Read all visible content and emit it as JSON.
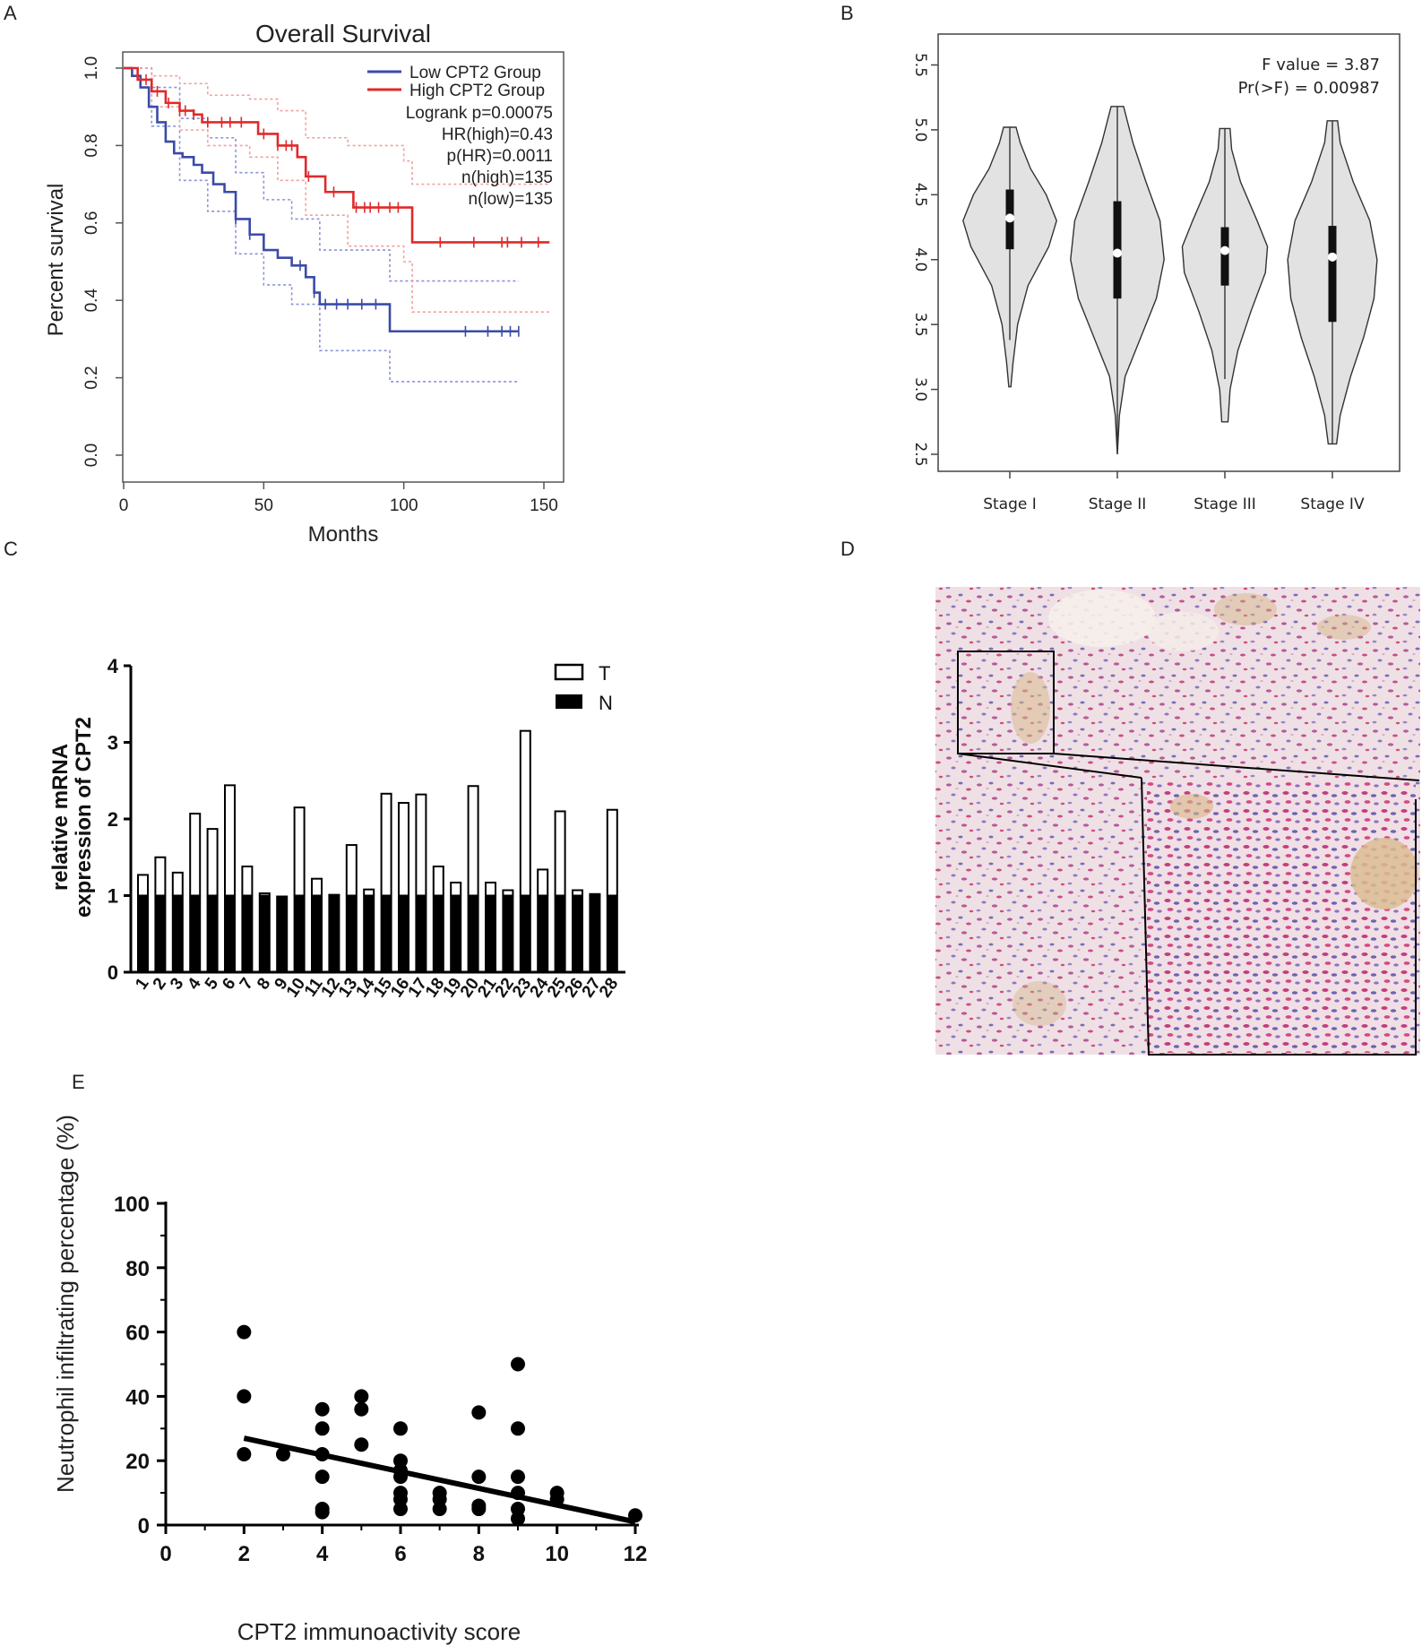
{
  "panels": {
    "a": "A",
    "b": "B",
    "c": "C",
    "d": "D",
    "e": "E"
  },
  "colors": {
    "low": "#3b4ba8",
    "high": "#e02a2a",
    "low_ci": "#8a93d8",
    "high_ci": "#f2a0a0",
    "violin_fill": "#e2e2e2"
  },
  "chart_data": [
    {
      "id": "A",
      "type": "line",
      "title": "Overall Survival",
      "xlabel": "Months",
      "ylabel": "Percent survival",
      "xlim": [
        0,
        150
      ],
      "ylim": [
        0,
        1
      ],
      "xticks": [
        "0",
        "50",
        "100",
        "150"
      ],
      "yticks": [
        "0.0",
        "0.2",
        "0.4",
        "0.6",
        "0.8",
        "1.0"
      ],
      "legend": [
        "Low CPT2 Group",
        "High CPT2 Group"
      ],
      "stats": [
        "Logrank p=0.00075",
        "HR(high)=0.43",
        "p(HR)=0.0011",
        "n(high)=135",
        "n(low)=135"
      ],
      "series": [
        {
          "name": "Low CPT2 Group",
          "points": [
            [
              0,
              1.0
            ],
            [
              3,
              0.98
            ],
            [
              6,
              0.95
            ],
            [
              9,
              0.9
            ],
            [
              12,
              0.86
            ],
            [
              15,
              0.81
            ],
            [
              18,
              0.78
            ],
            [
              21,
              0.77
            ],
            [
              25,
              0.75
            ],
            [
              28,
              0.73
            ],
            [
              32,
              0.7
            ],
            [
              36,
              0.68
            ],
            [
              40,
              0.61
            ],
            [
              45,
              0.57
            ],
            [
              50,
              0.53
            ],
            [
              55,
              0.51
            ],
            [
              60,
              0.49
            ],
            [
              65,
              0.46
            ],
            [
              68,
              0.42
            ],
            [
              70,
              0.39
            ],
            [
              95,
              0.32
            ],
            [
              141,
              0.32
            ]
          ],
          "ci_upper": [
            [
              0,
              1.0
            ],
            [
              10,
              0.95
            ],
            [
              20,
              0.87
            ],
            [
              30,
              0.82
            ],
            [
              40,
              0.73
            ],
            [
              50,
              0.66
            ],
            [
              60,
              0.61
            ],
            [
              70,
              0.53
            ],
            [
              95,
              0.45
            ],
            [
              141,
              0.45
            ]
          ],
          "ci_lower": [
            [
              0,
              1.0
            ],
            [
              10,
              0.85
            ],
            [
              20,
              0.71
            ],
            [
              30,
              0.63
            ],
            [
              40,
              0.52
            ],
            [
              50,
              0.44
            ],
            [
              60,
              0.39
            ],
            [
              70,
              0.27
            ],
            [
              95,
              0.19
            ],
            [
              141,
              0.19
            ]
          ],
          "censor": [
            40,
            45,
            63,
            68,
            72,
            76,
            80,
            85,
            90,
            122,
            130,
            135,
            138,
            141
          ]
        },
        {
          "name": "High CPT2 Group",
          "points": [
            [
              0,
              1.0
            ],
            [
              5,
              0.97
            ],
            [
              10,
              0.94
            ],
            [
              15,
              0.91
            ],
            [
              20,
              0.89
            ],
            [
              25,
              0.88
            ],
            [
              28,
              0.86
            ],
            [
              45,
              0.86
            ],
            [
              48,
              0.83
            ],
            [
              55,
              0.8
            ],
            [
              62,
              0.77
            ],
            [
              65,
              0.72
            ],
            [
              72,
              0.68
            ],
            [
              82,
              0.64
            ],
            [
              100,
              0.64
            ],
            [
              103,
              0.55
            ],
            [
              152,
              0.55
            ]
          ],
          "ci_upper": [
            [
              0,
              1.0
            ],
            [
              10,
              0.98
            ],
            [
              20,
              0.96
            ],
            [
              30,
              0.93
            ],
            [
              45,
              0.92
            ],
            [
              55,
              0.89
            ],
            [
              65,
              0.82
            ],
            [
              80,
              0.8
            ],
            [
              100,
              0.76
            ],
            [
              103,
              0.7
            ],
            [
              152,
              0.7
            ]
          ],
          "ci_lower": [
            [
              0,
              1.0
            ],
            [
              10,
              0.9
            ],
            [
              20,
              0.84
            ],
            [
              30,
              0.8
            ],
            [
              45,
              0.77
            ],
            [
              55,
              0.71
            ],
            [
              65,
              0.62
            ],
            [
              80,
              0.54
            ],
            [
              100,
              0.5
            ],
            [
              103,
              0.37
            ],
            [
              152,
              0.37
            ]
          ],
          "censor": [
            8,
            12,
            16,
            20,
            22,
            25,
            30,
            35,
            38,
            42,
            50,
            55,
            58,
            60,
            66,
            75,
            83,
            86,
            88,
            91,
            95,
            98,
            113,
            125,
            135,
            137,
            142,
            148
          ]
        }
      ]
    },
    {
      "id": "B",
      "type": "violin",
      "categories": [
        "Stage I",
        "Stage II",
        "Stage III",
        "Stage IV"
      ],
      "ylim": [
        2.5,
        5.6
      ],
      "yticks": [
        "2.5",
        "3.0",
        "3.5",
        "4.0",
        "4.5",
        "5.0",
        "5.5"
      ],
      "stats": [
        "F value = 3.87",
        "Pr(>F) = 0.00987"
      ],
      "violins": [
        {
          "min": 3.02,
          "q1": 4.08,
          "median": 4.32,
          "q3": 4.54,
          "max": 5.02,
          "whisker_low": 3.38,
          "profile": [
            [
              3.02,
              0.02
            ],
            [
              3.2,
              0.06
            ],
            [
              3.5,
              0.15
            ],
            [
              3.8,
              0.35
            ],
            [
              4.1,
              0.75
            ],
            [
              4.3,
              0.9
            ],
            [
              4.5,
              0.7
            ],
            [
              4.7,
              0.4
            ],
            [
              4.9,
              0.2
            ],
            [
              5.02,
              0.12
            ]
          ]
        },
        {
          "min": 2.5,
          "q1": 3.7,
          "median": 4.05,
          "q3": 4.45,
          "max": 5.18,
          "whisker_low": 2.5,
          "profile": [
            [
              2.5,
              0.0
            ],
            [
              2.8,
              0.04
            ],
            [
              3.1,
              0.15
            ],
            [
              3.4,
              0.45
            ],
            [
              3.7,
              0.75
            ],
            [
              4.0,
              0.9
            ],
            [
              4.3,
              0.82
            ],
            [
              4.6,
              0.55
            ],
            [
              4.9,
              0.3
            ],
            [
              5.18,
              0.12
            ]
          ]
        },
        {
          "min": 2.75,
          "q1": 3.8,
          "median": 4.07,
          "q3": 4.25,
          "max": 5.01,
          "whisker_low": 3.08,
          "profile": [
            [
              2.75,
              0.06
            ],
            [
              3.0,
              0.1
            ],
            [
              3.3,
              0.25
            ],
            [
              3.6,
              0.5
            ],
            [
              3.9,
              0.78
            ],
            [
              4.1,
              0.82
            ],
            [
              4.3,
              0.62
            ],
            [
              4.6,
              0.3
            ],
            [
              4.85,
              0.13
            ],
            [
              5.01,
              0.1
            ]
          ]
        },
        {
          "min": 2.58,
          "q1": 3.52,
          "median": 4.02,
          "q3": 4.26,
          "max": 5.07,
          "whisker_low": 2.58,
          "profile": [
            [
              2.58,
              0.08
            ],
            [
              2.8,
              0.15
            ],
            [
              3.1,
              0.35
            ],
            [
              3.4,
              0.6
            ],
            [
              3.7,
              0.8
            ],
            [
              4.0,
              0.86
            ],
            [
              4.3,
              0.72
            ],
            [
              4.6,
              0.4
            ],
            [
              4.9,
              0.15
            ],
            [
              5.07,
              0.1
            ]
          ]
        }
      ]
    },
    {
      "id": "C",
      "type": "bar",
      "ylabel": [
        "relative mRNA",
        "expression of CPT2"
      ],
      "ylim": [
        0,
        4
      ],
      "yticks": [
        "0",
        "1",
        "2",
        "3",
        "4"
      ],
      "categories": [
        "1",
        "2",
        "3",
        "4",
        "5",
        "6",
        "7",
        "8",
        "9",
        "10",
        "11",
        "12",
        "13",
        "14",
        "15",
        "16",
        "17",
        "18",
        "19",
        "20",
        "21",
        "22",
        "23",
        "24",
        "25",
        "26",
        "27",
        "28"
      ],
      "series": [
        {
          "name": "T",
          "values": [
            1.27,
            1.5,
            1.3,
            2.07,
            1.87,
            2.44,
            1.38,
            1.03,
            1.0,
            2.15,
            1.22,
            1.01,
            1.66,
            1.08,
            2.33,
            2.21,
            2.32,
            1.38,
            1.17,
            2.43,
            1.17,
            1.07,
            3.15,
            1.34,
            2.1,
            1.07,
            1.02,
            2.12
          ]
        },
        {
          "name": "N",
          "values": [
            1,
            1,
            1,
            1,
            1,
            1,
            1,
            1,
            1,
            1,
            1,
            1,
            1,
            1,
            1,
            1,
            1,
            1,
            1,
            1,
            1,
            1,
            1,
            1,
            1,
            1,
            1,
            1
          ]
        }
      ],
      "legend": [
        "T",
        "N"
      ]
    },
    {
      "id": "E",
      "type": "scatter",
      "xlabel": "CPT2 immunoactivity  score",
      "ylabel": "Neutrophil infiltrating percentage (%)",
      "xlim": [
        0,
        12
      ],
      "ylim": [
        0,
        100
      ],
      "xticks": [
        "0",
        "2",
        "4",
        "6",
        "8",
        "10",
        "12"
      ],
      "yticks": [
        "0",
        "20",
        "40",
        "60",
        "80",
        "100"
      ],
      "points": [
        [
          2,
          60
        ],
        [
          2,
          40
        ],
        [
          2,
          22
        ],
        [
          3,
          22
        ],
        [
          4,
          36
        ],
        [
          4,
          30
        ],
        [
          4,
          22
        ],
        [
          4,
          15
        ],
        [
          4,
          5
        ],
        [
          4,
          4
        ],
        [
          5,
          40
        ],
        [
          5,
          36
        ],
        [
          5,
          25
        ],
        [
          6,
          30
        ],
        [
          6,
          20
        ],
        [
          6,
          17
        ],
        [
          6,
          15
        ],
        [
          6,
          10
        ],
        [
          6,
          8
        ],
        [
          6,
          5
        ],
        [
          7,
          10
        ],
        [
          7,
          8
        ],
        [
          7,
          5
        ],
        [
          8,
          35
        ],
        [
          8,
          15
        ],
        [
          8,
          6
        ],
        [
          8,
          5
        ],
        [
          9,
          50
        ],
        [
          9,
          30
        ],
        [
          9,
          15
        ],
        [
          9,
          10
        ],
        [
          9,
          5
        ],
        [
          9,
          2
        ],
        [
          10,
          10
        ],
        [
          10,
          8
        ],
        [
          12,
          3
        ]
      ],
      "fit": [
        [
          2,
          27
        ],
        [
          12,
          1
        ]
      ]
    }
  ],
  "image_d": {
    "description_label": "IHC micrograph"
  }
}
